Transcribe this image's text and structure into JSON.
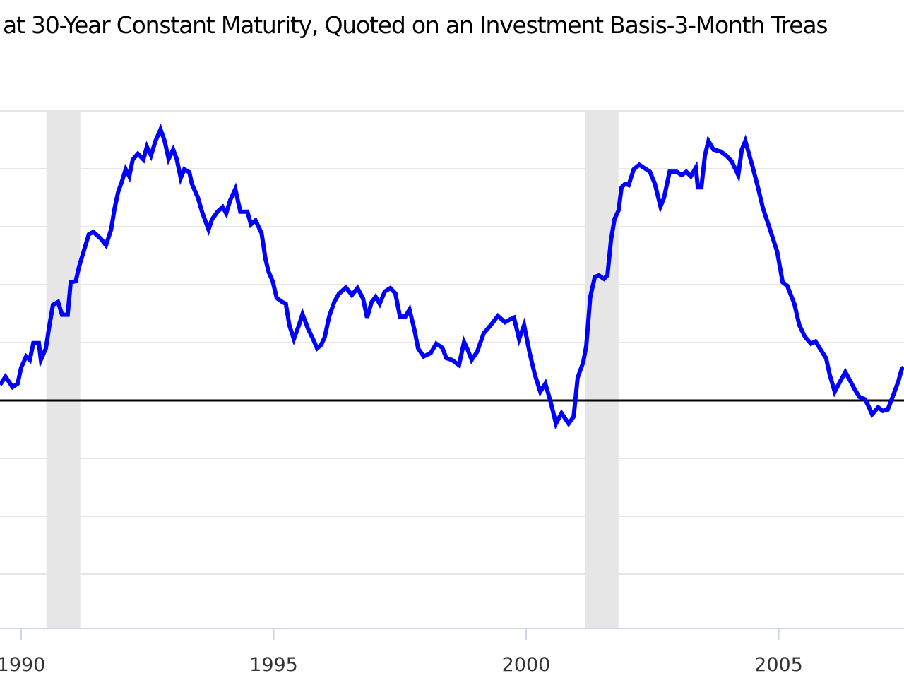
{
  "chart_data": {
    "type": "line",
    "title": "at 30-Year Constant Maturity, Quoted on an Investment Basis-3-Month Treas",
    "xlabel": "",
    "ylabel": "",
    "x_ticks": [
      1990,
      1995,
      2000,
      2005
    ],
    "y_gridlines": [
      -3,
      -2,
      -1,
      0,
      1,
      2,
      3,
      4,
      5
    ],
    "zero_line": 0,
    "grid": true,
    "recessions": [
      [
        1990.5,
        1991.17
      ],
      [
        2001.17,
        2001.83
      ]
    ],
    "colors": {
      "line": "#0000ff",
      "recession": "#e6e6e6",
      "zero_line": "#000000",
      "grid": "#e6e6e6"
    },
    "series": [
      {
        "x": [
          1989.58,
          1989.69,
          1989.83,
          1989.93,
          1990.0,
          1990.1,
          1990.17,
          1990.24,
          1990.35,
          1990.39,
          1990.49,
          1990.56,
          1990.63,
          1990.73,
          1990.81,
          1990.92,
          1990.98,
          1991.08,
          1991.15,
          1991.23,
          1991.34,
          1991.43,
          1991.58,
          1991.68,
          1991.78,
          1991.85,
          1991.92,
          1991.99,
          1992.07,
          1992.14,
          1992.21,
          1992.31,
          1992.42,
          1992.49,
          1992.57,
          1992.66,
          1992.76,
          1992.84,
          1992.92,
          1993.01,
          1993.08,
          1993.16,
          1993.23,
          1993.33,
          1993.38,
          1993.5,
          1993.58,
          1993.71,
          1993.78,
          1993.89,
          1993.99,
          1994.06,
          1994.14,
          1994.24,
          1994.34,
          1994.48,
          1994.55,
          1994.64,
          1994.76,
          1994.84,
          1994.9,
          1994.98,
          1995.06,
          1995.17,
          1995.24,
          1995.31,
          1995.4,
          1995.5,
          1995.57,
          1995.68,
          1995.78,
          1995.86,
          1995.94,
          1996.01,
          1996.1,
          1996.2,
          1996.29,
          1996.43,
          1996.55,
          1996.66,
          1996.77,
          1996.85,
          1996.94,
          1997.02,
          1997.1,
          1997.2,
          1997.31,
          1997.41,
          1997.5,
          1997.61,
          1997.69,
          1997.79,
          1997.86,
          1997.97,
          1998.11,
          1998.22,
          1998.34,
          1998.42,
          1998.53,
          1998.67,
          1998.77,
          1998.84,
          1998.92,
          1999.03,
          1999.16,
          1999.3,
          1999.44,
          1999.58,
          1999.68,
          1999.76,
          1999.86,
          1999.96,
          2000.07,
          2000.17,
          2000.28,
          2000.38,
          2000.49,
          2000.59,
          2000.7,
          2000.84,
          2000.94,
          2001.02,
          2001.13,
          2001.19,
          2001.27,
          2001.36,
          2001.44,
          2001.54,
          2001.61,
          2001.68,
          2001.75,
          2001.83,
          2001.89,
          2001.96,
          2002.03,
          2002.13,
          2002.24,
          2002.45,
          2002.55,
          2002.66,
          2002.73,
          2002.84,
          2002.98,
          2003.08,
          2003.17,
          2003.26,
          2003.36,
          2003.4,
          2003.47,
          2003.54,
          2003.61,
          2003.71,
          2003.85,
          2003.96,
          2004.07,
          2004.2,
          2004.27,
          2004.34,
          2004.48,
          2004.59,
          2004.69,
          2004.83,
          2004.97,
          2005.08,
          2005.17,
          2005.31,
          2005.41,
          2005.52,
          2005.64,
          2005.73,
          2005.83,
          2005.94,
          2006.01,
          2006.11,
          2006.22,
          2006.32,
          2006.41,
          2006.5,
          2006.6,
          2006.71,
          2006.78,
          2006.85,
          2006.97,
          2007.06,
          2007.16,
          2007.27,
          2007.37,
          2007.44,
          2007.48
        ],
        "values": [
          0.27,
          0.41,
          0.23,
          0.29,
          0.57,
          0.76,
          0.7,
          0.99,
          0.99,
          0.7,
          0.9,
          1.3,
          1.65,
          1.7,
          1.48,
          1.48,
          2.04,
          2.06,
          2.32,
          2.55,
          2.87,
          2.91,
          2.79,
          2.68,
          2.95,
          3.32,
          3.6,
          3.77,
          3.99,
          3.87,
          4.16,
          4.26,
          4.16,
          4.38,
          4.23,
          4.48,
          4.68,
          4.48,
          4.17,
          4.33,
          4.17,
          3.84,
          3.99,
          3.94,
          3.74,
          3.5,
          3.26,
          2.95,
          3.13,
          3.26,
          3.34,
          3.23,
          3.46,
          3.65,
          3.26,
          3.26,
          3.04,
          3.11,
          2.89,
          2.43,
          2.22,
          2.06,
          1.77,
          1.7,
          1.67,
          1.3,
          1.06,
          1.3,
          1.49,
          1.24,
          1.06,
          0.9,
          0.96,
          1.09,
          1.45,
          1.7,
          1.84,
          1.95,
          1.82,
          1.94,
          1.76,
          1.43,
          1.7,
          1.79,
          1.67,
          1.88,
          1.94,
          1.85,
          1.45,
          1.45,
          1.57,
          1.21,
          0.9,
          0.76,
          0.82,
          0.98,
          0.91,
          0.73,
          0.7,
          0.61,
          1.01,
          0.88,
          0.7,
          0.84,
          1.16,
          1.3,
          1.46,
          1.35,
          1.4,
          1.43,
          1.06,
          1.3,
          0.82,
          0.45,
          0.15,
          0.29,
          -0.04,
          -0.4,
          -0.22,
          -0.4,
          -0.28,
          0.39,
          0.66,
          0.94,
          1.79,
          2.13,
          2.16,
          2.1,
          2.16,
          2.77,
          3.13,
          3.28,
          3.68,
          3.74,
          3.72,
          3.99,
          4.07,
          3.95,
          3.74,
          3.35,
          3.5,
          3.95,
          3.95,
          3.89,
          3.95,
          3.87,
          4.02,
          3.68,
          3.68,
          4.23,
          4.48,
          4.33,
          4.3,
          4.23,
          4.13,
          3.89,
          4.33,
          4.48,
          4.05,
          3.68,
          3.32,
          2.95,
          2.57,
          2.04,
          1.98,
          1.67,
          1.3,
          1.1,
          0.98,
          1.02,
          0.88,
          0.73,
          0.45,
          0.15,
          0.33,
          0.49,
          0.35,
          0.2,
          0.06,
          0.02,
          -0.1,
          -0.24,
          -0.12,
          -0.18,
          -0.16,
          0.09,
          0.33,
          0.55,
          0.57
        ]
      }
    ]
  }
}
